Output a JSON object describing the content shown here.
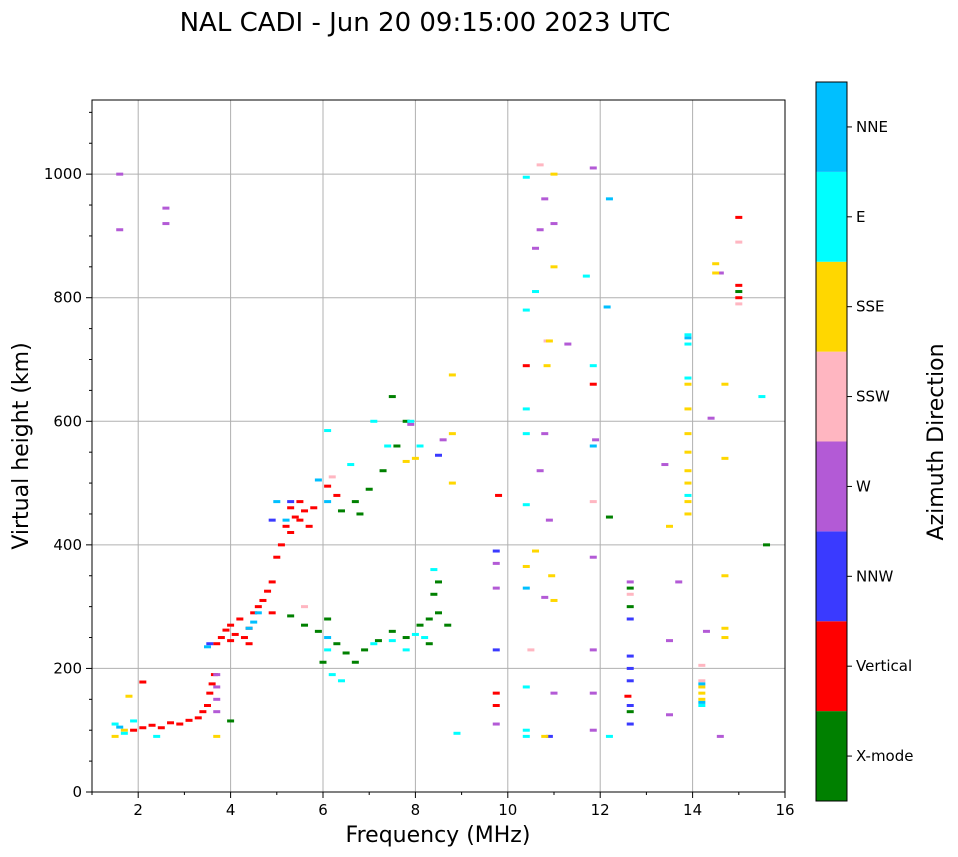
{
  "chart_data": {
    "type": "scatter",
    "title": "NAL CADI - Jun 20 09:15:00 2023 UTC",
    "xlabel": "Frequency (MHz)",
    "ylabel": "Virtual height (km)",
    "xlim": [
      1,
      16
    ],
    "ylim": [
      0,
      1120
    ],
    "xticks": [
      2,
      4,
      6,
      8,
      10,
      12,
      14,
      16
    ],
    "yticks": [
      0,
      200,
      400,
      600,
      800,
      1000
    ],
    "grid": true,
    "colorbar": {
      "title": "Azimuth Direction",
      "categories": [
        {
          "name": "X-mode",
          "color": "#008000"
        },
        {
          "name": "Vertical",
          "color": "#ff0000"
        },
        {
          "name": "NNW",
          "color": "#3a3aff"
        },
        {
          "name": "W",
          "color": "#b35ad6"
        },
        {
          "name": "SSW",
          "color": "#ffb6c1"
        },
        {
          "name": "SSE",
          "color": "#ffd700"
        },
        {
          "name": "E",
          "color": "#00ffff"
        },
        {
          "name": "NNE",
          "color": "#00bfff"
        }
      ]
    },
    "series": [
      {
        "name": "Vertical",
        "color": "#ff0000",
        "points": [
          [
            1.9,
            100
          ],
          [
            2.1,
            104
          ],
          [
            2.3,
            108
          ],
          [
            2.5,
            104
          ],
          [
            2.7,
            112
          ],
          [
            2.9,
            110
          ],
          [
            3.1,
            116
          ],
          [
            3.3,
            120
          ],
          [
            3.4,
            130
          ],
          [
            3.5,
            140
          ],
          [
            3.55,
            160
          ],
          [
            3.6,
            175
          ],
          [
            3.65,
            190
          ],
          [
            3.7,
            240
          ],
          [
            3.8,
            250
          ],
          [
            3.9,
            262
          ],
          [
            4.0,
            270
          ],
          [
            4.1,
            255
          ],
          [
            4.2,
            280
          ],
          [
            4.3,
            250
          ],
          [
            4.4,
            265
          ],
          [
            4.5,
            290
          ],
          [
            4.6,
            300
          ],
          [
            4.7,
            310
          ],
          [
            4.8,
            325
          ],
          [
            4.9,
            340
          ],
          [
            5.0,
            380
          ],
          [
            5.1,
            400
          ],
          [
            5.2,
            430
          ],
          [
            5.3,
            420
          ],
          [
            5.4,
            445
          ],
          [
            5.5,
            440
          ],
          [
            5.6,
            455
          ],
          [
            5.7,
            430
          ],
          [
            5.3,
            460
          ],
          [
            5.5,
            470
          ],
          [
            4.9,
            290
          ],
          [
            4.4,
            240
          ],
          [
            4.0,
            245
          ],
          [
            5.8,
            460
          ],
          [
            6.1,
            495
          ],
          [
            6.3,
            480
          ],
          [
            9.75,
            140
          ],
          [
            9.75,
            160
          ],
          [
            9.8,
            480
          ],
          [
            10.4,
            690
          ],
          [
            11.85,
            660
          ],
          [
            12.6,
            155
          ],
          [
            15.0,
            930
          ],
          [
            15.0,
            820
          ],
          [
            15.0,
            800
          ],
          [
            2.1,
            178
          ]
        ]
      },
      {
        "name": "X-mode",
        "color": "#008000",
        "points": [
          [
            4.0,
            115
          ],
          [
            5.3,
            285
          ],
          [
            5.6,
            270
          ],
          [
            5.9,
            260
          ],
          [
            6.1,
            280
          ],
          [
            6.3,
            240
          ],
          [
            6.5,
            225
          ],
          [
            6.7,
            210
          ],
          [
            6.9,
            230
          ],
          [
            7.2,
            245
          ],
          [
            7.5,
            260
          ],
          [
            7.8,
            250
          ],
          [
            8.1,
            270
          ],
          [
            8.3,
            280
          ],
          [
            8.5,
            290
          ],
          [
            8.7,
            270
          ],
          [
            8.4,
            320
          ],
          [
            8.5,
            340
          ],
          [
            6.4,
            455
          ],
          [
            6.7,
            470
          ],
          [
            7.0,
            490
          ],
          [
            7.3,
            520
          ],
          [
            7.6,
            560
          ],
          [
            7.8,
            600
          ],
          [
            7.5,
            640
          ],
          [
            6.0,
            210
          ],
          [
            8.3,
            240
          ],
          [
            12.2,
            445
          ],
          [
            12.65,
            330
          ],
          [
            12.65,
            300
          ],
          [
            12.65,
            130
          ],
          [
            15.0,
            810
          ],
          [
            15.6,
            400
          ],
          [
            6.8,
            450
          ]
        ]
      },
      {
        "name": "NNW",
        "color": "#3a3aff",
        "points": [
          [
            3.55,
            240
          ],
          [
            4.9,
            440
          ],
          [
            5.3,
            470
          ],
          [
            8.5,
            545
          ],
          [
            9.75,
            230
          ],
          [
            9.75,
            390
          ],
          [
            10.9,
            90
          ],
          [
            12.65,
            280
          ],
          [
            12.65,
            220
          ],
          [
            12.65,
            200
          ],
          [
            12.65,
            180
          ],
          [
            12.65,
            140
          ],
          [
            12.65,
            110
          ]
        ]
      },
      {
        "name": "W",
        "color": "#b35ad6",
        "points": [
          [
            1.6,
            1000
          ],
          [
            1.6,
            910
          ],
          [
            2.6,
            945
          ],
          [
            2.6,
            920
          ],
          [
            3.7,
            190
          ],
          [
            3.7,
            170
          ],
          [
            3.7,
            150
          ],
          [
            3.7,
            130
          ],
          [
            7.9,
            595
          ],
          [
            8.6,
            570
          ],
          [
            10.6,
            880
          ],
          [
            10.7,
            910
          ],
          [
            10.8,
            960
          ],
          [
            11.0,
            920
          ],
          [
            11.3,
            725
          ],
          [
            10.7,
            520
          ],
          [
            10.9,
            440
          ],
          [
            11.0,
            160
          ],
          [
            11.85,
            1010
          ],
          [
            11.9,
            570
          ],
          [
            11.85,
            380
          ],
          [
            11.85,
            230
          ],
          [
            11.85,
            160
          ],
          [
            11.85,
            100
          ],
          [
            12.65,
            340
          ],
          [
            13.4,
            530
          ],
          [
            13.7,
            340
          ],
          [
            13.5,
            245
          ],
          [
            13.5,
            125
          ],
          [
            14.3,
            260
          ],
          [
            14.6,
            840
          ],
          [
            14.4,
            605
          ],
          [
            14.6,
            90
          ],
          [
            9.75,
            370
          ],
          [
            9.75,
            330
          ],
          [
            9.75,
            110
          ],
          [
            10.8,
            580
          ],
          [
            10.8,
            315
          ]
        ]
      },
      {
        "name": "SSW",
        "color": "#ffb6c1",
        "points": [
          [
            10.7,
            1015
          ],
          [
            10.85,
            730
          ],
          [
            11.85,
            470
          ],
          [
            12.65,
            320
          ],
          [
            14.2,
            205
          ],
          [
            14.2,
            180
          ],
          [
            15.0,
            890
          ],
          [
            15.0,
            790
          ],
          [
            5.6,
            300
          ],
          [
            6.2,
            510
          ],
          [
            10.5,
            230
          ]
        ]
      },
      {
        "name": "SSE",
        "color": "#ffd700",
        "points": [
          [
            1.5,
            90
          ],
          [
            1.7,
            100
          ],
          [
            1.8,
            155
          ],
          [
            3.7,
            90
          ],
          [
            7.8,
            535
          ],
          [
            8.0,
            540
          ],
          [
            8.8,
            675
          ],
          [
            8.8,
            580
          ],
          [
            8.8,
            500
          ],
          [
            10.9,
            730
          ],
          [
            10.85,
            690
          ],
          [
            10.95,
            350
          ],
          [
            11.0,
            310
          ],
          [
            10.4,
            365
          ],
          [
            10.6,
            390
          ],
          [
            11.0,
            1000
          ],
          [
            11.0,
            850
          ],
          [
            13.9,
            660
          ],
          [
            13.9,
            620
          ],
          [
            13.9,
            580
          ],
          [
            13.9,
            550
          ],
          [
            13.9,
            520
          ],
          [
            13.9,
            500
          ],
          [
            13.9,
            470
          ],
          [
            13.9,
            450
          ],
          [
            13.5,
            430
          ],
          [
            14.2,
            170
          ],
          [
            14.2,
            160
          ],
          [
            14.2,
            150
          ],
          [
            14.5,
            855
          ],
          [
            14.5,
            840
          ],
          [
            14.7,
            660
          ],
          [
            14.7,
            540
          ],
          [
            14.7,
            350
          ],
          [
            14.7,
            265
          ],
          [
            14.7,
            250
          ],
          [
            10.8,
            90
          ]
        ]
      },
      {
        "name": "E",
        "color": "#00ffff",
        "points": [
          [
            1.5,
            110
          ],
          [
            1.7,
            95
          ],
          [
            1.9,
            115
          ],
          [
            2.4,
            90
          ],
          [
            6.1,
            585
          ],
          [
            6.6,
            530
          ],
          [
            7.1,
            600
          ],
          [
            7.4,
            560
          ],
          [
            7.9,
            600
          ],
          [
            8.1,
            560
          ],
          [
            8.4,
            360
          ],
          [
            8.9,
            95
          ],
          [
            10.4,
            995
          ],
          [
            10.4,
            780
          ],
          [
            10.4,
            620
          ],
          [
            10.4,
            580
          ],
          [
            10.4,
            465
          ],
          [
            10.4,
            170
          ],
          [
            10.4,
            100
          ],
          [
            10.4,
            90
          ],
          [
            10.6,
            810
          ],
          [
            11.7,
            835
          ],
          [
            11.85,
            690
          ],
          [
            12.2,
            90
          ],
          [
            13.9,
            740
          ],
          [
            13.9,
            725
          ],
          [
            13.9,
            670
          ],
          [
            13.9,
            480
          ],
          [
            14.2,
            140
          ],
          [
            15.5,
            640
          ],
          [
            6.2,
            190
          ],
          [
            6.4,
            180
          ],
          [
            6.1,
            230
          ],
          [
            7.1,
            240
          ],
          [
            7.5,
            245
          ],
          [
            7.8,
            230
          ],
          [
            8.0,
            255
          ],
          [
            8.2,
            250
          ]
        ]
      },
      {
        "name": "NNE",
        "color": "#00bfff",
        "points": [
          [
            1.6,
            105
          ],
          [
            3.5,
            235
          ],
          [
            4.4,
            265
          ],
          [
            4.5,
            275
          ],
          [
            4.6,
            290
          ],
          [
            5.0,
            470
          ],
          [
            5.2,
            440
          ],
          [
            5.9,
            505
          ],
          [
            6.1,
            470
          ],
          [
            6.1,
            250
          ],
          [
            10.4,
            330
          ],
          [
            11.85,
            560
          ],
          [
            12.15,
            785
          ],
          [
            12.2,
            960
          ],
          [
            13.9,
            735
          ],
          [
            14.2,
            175
          ],
          [
            14.2,
            145
          ]
        ]
      }
    ]
  }
}
